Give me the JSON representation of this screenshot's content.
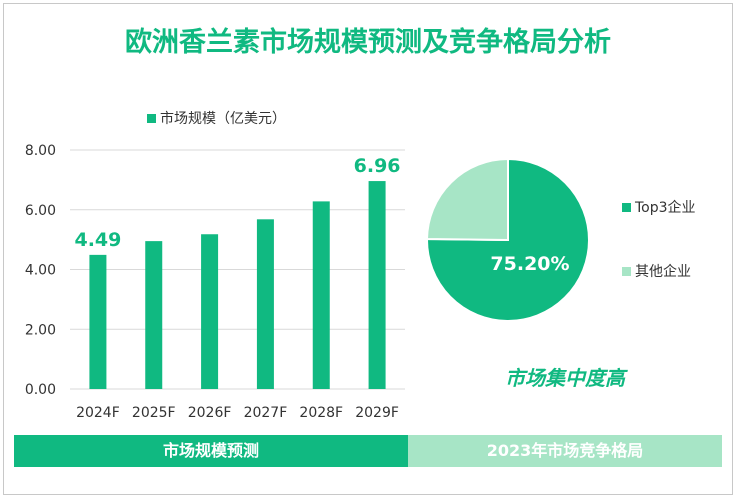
{
  "title": "欧洲香兰素市场规模预测及竞争格局分析",
  "colors": {
    "primary": "#10b981",
    "light": "#a7e5c6",
    "text": "#333333",
    "grid": "#d9d9d9"
  },
  "chart_data": [
    {
      "type": "bar",
      "categories": [
        "2024F",
        "2025F",
        "2026F",
        "2027F",
        "2028F",
        "2029F"
      ],
      "series": [
        {
          "name": "市场规模（亿美元）",
          "values": [
            4.49,
            4.95,
            5.18,
            5.68,
            6.28,
            6.96
          ]
        }
      ],
      "data_labels": [
        {
          "index": 0,
          "text": "4.49"
        },
        {
          "index": 5,
          "text": "6.96"
        }
      ],
      "yticks": [
        "0.00",
        "2.00",
        "4.00",
        "6.00",
        "8.00"
      ],
      "ylim": [
        0,
        8
      ],
      "grid": true,
      "legend": "top"
    },
    {
      "type": "pie",
      "slices": [
        {
          "label": "Top3企业",
          "value": 75.2
        },
        {
          "label": "其他企业",
          "value": 24.8
        }
      ],
      "data_label": "75.20%",
      "legend": "right"
    }
  ],
  "pie_caption": "市场集中度高",
  "footer": {
    "left": "市场规模预测",
    "right": "2023年市场竞争格局"
  }
}
